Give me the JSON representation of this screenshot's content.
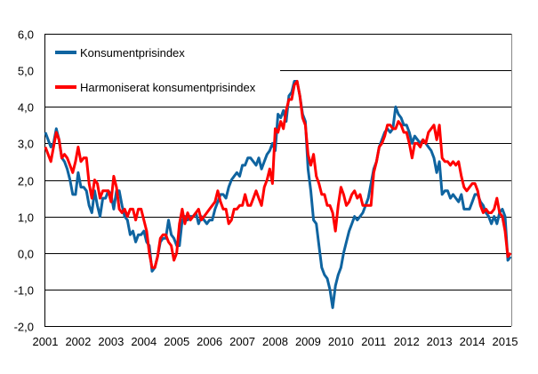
{
  "chart_data": {
    "type": "line",
    "title": "",
    "xlabel": "",
    "ylabel": "",
    "ylim": [
      -2.0,
      6.0
    ],
    "yticks": [
      "6,0",
      "5,0",
      "4,0",
      "3,0",
      "2,0",
      "1,0",
      "0,0",
      "-1,0",
      "-2,0"
    ],
    "xticks": [
      "2001",
      "2002",
      "2003",
      "2004",
      "2005",
      "2006",
      "2007",
      "2008",
      "2009",
      "2010",
      "2011",
      "2012",
      "2013",
      "2014",
      "2015"
    ],
    "x_start": "2001-01",
    "x_frequency": "monthly",
    "grid": "horizontal",
    "legend_position": "top-left",
    "series": [
      {
        "name": "Konsumentprisindex",
        "color": "#0f64a0",
        "values": [
          3.3,
          3.1,
          2.9,
          3.0,
          3.4,
          3.1,
          2.6,
          2.5,
          2.3,
          2.0,
          1.6,
          1.6,
          2.2,
          1.8,
          1.8,
          1.7,
          1.3,
          1.1,
          1.7,
          1.3,
          1.0,
          1.5,
          1.5,
          1.7,
          1.6,
          1.2,
          1.7,
          1.7,
          1.3,
          1.0,
          0.9,
          0.5,
          0.6,
          0.3,
          0.5,
          0.5,
          0.6,
          0.3,
          0.2,
          -0.5,
          -0.4,
          -0.1,
          0.3,
          0.4,
          0.4,
          0.9,
          0.5,
          0.4,
          0.2,
          0.2,
          0.9,
          1.0,
          0.9,
          1.0,
          1.0,
          1.1,
          0.8,
          1.0,
          0.9,
          0.8,
          0.9,
          0.9,
          1.2,
          1.4,
          1.6,
          1.6,
          1.5,
          1.8,
          2.0,
          2.1,
          2.2,
          2.1,
          2.4,
          2.4,
          2.6,
          2.6,
          2.5,
          2.4,
          2.6,
          2.3,
          2.5,
          2.7,
          2.8,
          3.0,
          2.8,
          3.8,
          3.7,
          3.9,
          3.6,
          4.3,
          4.4,
          4.7,
          4.7,
          4.3,
          3.8,
          3.6,
          2.3,
          1.7,
          0.9,
          0.8,
          0.2,
          -0.4,
          -0.6,
          -0.7,
          -1.0,
          -1.5,
          -0.9,
          -0.6,
          -0.4,
          0.0,
          0.3,
          0.6,
          0.8,
          1.0,
          0.9,
          1.0,
          1.1,
          1.3,
          1.5,
          1.9,
          2.3,
          2.5,
          2.9,
          3.1,
          3.3,
          3.4,
          3.3,
          3.4,
          4.0,
          3.8,
          3.7,
          3.5,
          3.5,
          3.3,
          3.0,
          3.2,
          3.1,
          3.0,
          3.1,
          3.0,
          2.9,
          2.8,
          2.6,
          2.2,
          2.5,
          1.6,
          1.7,
          1.7,
          1.5,
          1.6,
          1.5,
          1.4,
          1.6,
          1.2,
          1.2,
          1.2,
          1.4,
          1.6,
          1.6,
          1.4,
          1.3,
          1.1,
          1.0,
          0.8,
          1.0,
          0.8,
          1.1,
          1.2,
          1.0,
          -0.2,
          -0.1
        ]
      },
      {
        "name": "Harmoniserat konsumentprisindex",
        "color": "#ff0000",
        "values": [
          2.9,
          2.7,
          2.5,
          2.9,
          3.3,
          3.1,
          2.6,
          2.7,
          2.6,
          2.4,
          2.2,
          2.5,
          2.9,
          2.5,
          2.6,
          2.6,
          1.9,
          1.5,
          2.0,
          1.9,
          1.5,
          1.7,
          1.7,
          1.7,
          1.4,
          2.1,
          1.8,
          1.2,
          1.1,
          1.2,
          1.0,
          1.2,
          1.2,
          0.9,
          1.2,
          1.2,
          0.9,
          0.6,
          0.0,
          -0.4,
          -0.4,
          -0.1,
          0.4,
          0.5,
          0.5,
          0.3,
          0.2,
          -0.2,
          0.0,
          0.8,
          1.2,
          0.8,
          1.1,
          0.9,
          1.0,
          1.1,
          1.2,
          0.9,
          1.0,
          1.1,
          1.2,
          1.3,
          1.4,
          1.7,
          1.4,
          1.2,
          1.2,
          0.8,
          0.9,
          1.2,
          1.2,
          1.3,
          1.3,
          1.6,
          1.3,
          1.3,
          1.5,
          1.7,
          1.5,
          1.3,
          1.8,
          2.0,
          2.3,
          1.9,
          3.4,
          3.3,
          3.6,
          3.4,
          3.9,
          4.2,
          4.2,
          4.6,
          4.7,
          4.3,
          3.7,
          3.5,
          2.7,
          2.4,
          2.7,
          2.1,
          1.9,
          1.6,
          1.6,
          1.3,
          1.3,
          1.1,
          0.6,
          1.3,
          1.8,
          1.6,
          1.3,
          1.4,
          1.6,
          1.7,
          1.5,
          1.6,
          1.3,
          1.3,
          1.3,
          1.3,
          2.2,
          2.5,
          2.9,
          3.0,
          3.2,
          3.5,
          3.5,
          3.4,
          3.4,
          3.6,
          3.5,
          3.3,
          3.3,
          3.0,
          2.6,
          3.0,
          3.0,
          2.9,
          3.1,
          3.0,
          3.3,
          3.4,
          3.5,
          3.1,
          3.5,
          2.6,
          2.5,
          2.5,
          2.4,
          2.5,
          2.4,
          2.5,
          2.1,
          1.8,
          1.7,
          1.8,
          1.9,
          1.9,
          1.7,
          1.3,
          1.1,
          1.2,
          1.1,
          1.1,
          1.2,
          1.5,
          1.1,
          1.0,
          0.6,
          -0.1,
          0.0
        ]
      }
    ]
  }
}
